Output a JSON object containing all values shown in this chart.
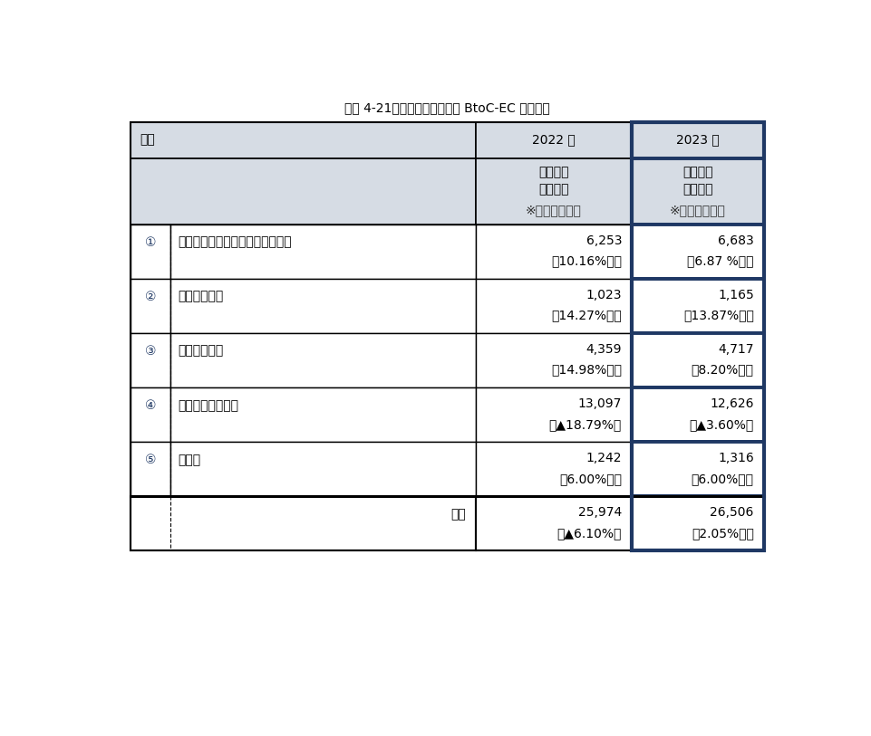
{
  "title": "図表 4-21：デジタル系分野の BtoC-EC 市場規模",
  "header_col1": "分類",
  "header_col2": "2022 年",
  "header_col3": "2023 年",
  "subheader_market": "市場規模",
  "subheader_unit": "（億円）",
  "subheader_note": "※下段：前年比",
  "rows": [
    {
      "num": "①",
      "label": "電子出版（電子書籍・電子雑誌）",
      "val2022": "6,253",
      "change2022": "（10.16%増）",
      "val2023": "6,683",
      "change2023": "（6.87 %増）"
    },
    {
      "num": "②",
      "label": "有料音楽配信",
      "val2022": "1,023",
      "change2022": "（14.27%増）",
      "val2023": "1,165",
      "change2023": "（13.87%増）"
    },
    {
      "num": "③",
      "label": "有料動画配信",
      "val2022": "4,359",
      "change2022": "（14.98%増）",
      "val2023": "4,717",
      "change2023": "（8.20%増）"
    },
    {
      "num": "④",
      "label": "オンラインゲーム",
      "val2022": "13,097",
      "change2022": "（▲18.79%）",
      "val2023": "12,626",
      "change2023": "（▲3.60%）"
    },
    {
      "num": "⑤",
      "label": "その他",
      "val2022": "1,242",
      "change2022": "（6.00%増）",
      "val2023": "1,316",
      "change2023": "（6.00%増）"
    }
  ],
  "footer": {
    "label": "合計",
    "val2022": "25,974",
    "change2022": "（▲6.10%）",
    "val2023": "26,506",
    "change2023": "（2.05%増）"
  },
  "header_bg": "#d6dce4",
  "col3_border_color": "#1f3864",
  "white": "#ffffff"
}
